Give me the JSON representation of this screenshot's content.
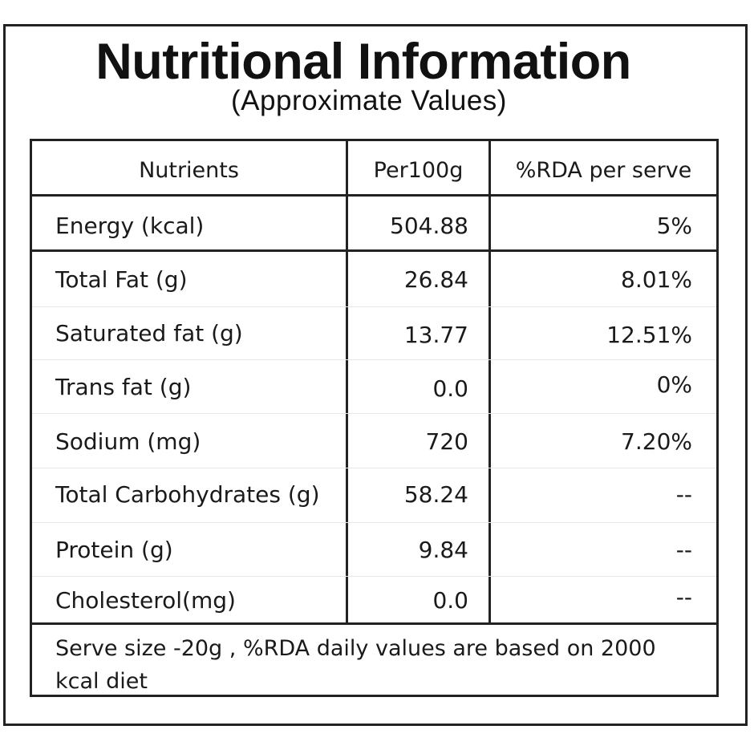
{
  "title": "Nutritional Information",
  "subtitle": "(Approximate Values)",
  "table": {
    "headers": {
      "nutrients": "Nutrients",
      "per100g": "Per100g",
      "rda": "%RDA per serve"
    },
    "rows": [
      {
        "nutrient": "Energy (kcal)",
        "per100g": "504.88",
        "rda": "5%"
      },
      {
        "nutrient": "Total Fat (g)",
        "per100g": "26.84",
        "rda": "8.01%"
      },
      {
        "nutrient": "Saturated fat (g)",
        "per100g": "13.77",
        "rda": "12.51%"
      },
      {
        "nutrient": "Trans fat (g)",
        "per100g": "0.0",
        "rda": "0%"
      },
      {
        "nutrient": "Sodium (mg)",
        "per100g": "720",
        "rda": "7.20%"
      },
      {
        "nutrient": "Total Carbohydrates (g)",
        "per100g": "58.24",
        "rda": "--"
      },
      {
        "nutrient": "Protein (g)",
        "per100g": "9.84",
        "rda": "--"
      },
      {
        "nutrient": "Cholesterol(mg)",
        "per100g": "0.0",
        "rda": "--"
      }
    ],
    "footnote": "Serve size -20g , %RDA daily values are based on 2000 kcal diet"
  }
}
